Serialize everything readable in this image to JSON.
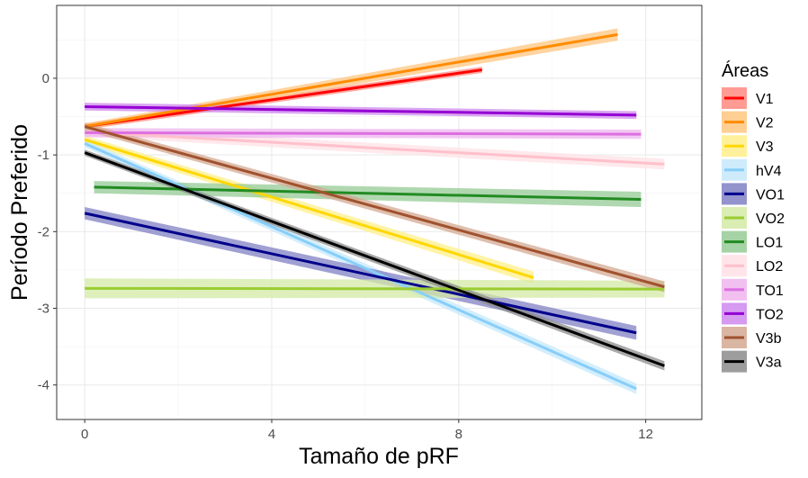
{
  "chart_data": {
    "type": "line",
    "xlabel": "Tamaño de pRF",
    "ylabel": "Período Preferido",
    "xlim": [
      -0.6,
      13.2
    ],
    "ylim": [
      -4.45,
      0.95
    ],
    "xticks": [
      0,
      4,
      8,
      12
    ],
    "yticks": [
      0,
      -1,
      -2,
      -3,
      -4
    ],
    "x_tick_labels": [
      "0",
      "4",
      "8",
      "12"
    ],
    "y_tick_labels": [
      "0",
      "-1",
      "-2",
      "-3",
      "-4"
    ],
    "grid": true,
    "legend": {
      "title": "Áreas",
      "position": "right"
    },
    "series": [
      {
        "name": "V1",
        "color": "#ff0000",
        "band": "#ff8a80",
        "x": [
          0,
          8.5
        ],
        "y": [
          -0.63,
          0.11
        ],
        "se": [
          0.04,
          0.04
        ]
      },
      {
        "name": "V2",
        "color": "#ff8c00",
        "band": "#ffc680",
        "x": [
          0,
          11.4
        ],
        "y": [
          -0.63,
          0.57
        ],
        "se": [
          0.04,
          0.08
        ]
      },
      {
        "name": "V3",
        "color": "#ffd700",
        "band": "#ffef8a",
        "x": [
          0,
          9.6
        ],
        "y": [
          -0.8,
          -2.6
        ],
        "se": [
          0.05,
          0.08
        ]
      },
      {
        "name": "hV4",
        "color": "#87cefa",
        "band": "#c6e8fb",
        "x": [
          0,
          11.8
        ],
        "y": [
          -0.85,
          -4.05
        ],
        "se": [
          0.05,
          0.07
        ]
      },
      {
        "name": "VO1",
        "color": "#00008b",
        "band": "#8080c4",
        "x": [
          0,
          11.8
        ],
        "y": [
          -1.76,
          -3.32
        ],
        "se": [
          0.08,
          0.09
        ]
      },
      {
        "name": "VO2",
        "color": "#9acd32",
        "band": "#d4eaa6",
        "x": [
          0,
          12.4
        ],
        "y": [
          -2.74,
          -2.75
        ],
        "se": [
          0.13,
          0.11
        ]
      },
      {
        "name": "LO1",
        "color": "#228b22",
        "band": "#96cb96",
        "x": [
          0.2,
          11.9
        ],
        "y": [
          -1.42,
          -1.58
        ],
        "se": [
          0.08,
          0.1
        ]
      },
      {
        "name": "LO2",
        "color": "#ffc0cb",
        "band": "#ffe1e6",
        "x": [
          0,
          12.4
        ],
        "y": [
          -0.7,
          -1.12
        ],
        "se": [
          0.06,
          0.07
        ]
      },
      {
        "name": "TO1",
        "color": "#dd6fe0",
        "band": "#eeb5ef",
        "x": [
          0,
          11.9
        ],
        "y": [
          -0.71,
          -0.73
        ],
        "se": [
          0.06,
          0.06
        ]
      },
      {
        "name": "TO2",
        "color": "#9400d3",
        "band": "#cf88ee",
        "x": [
          0,
          11.8
        ],
        "y": [
          -0.37,
          -0.48
        ],
        "se": [
          0.05,
          0.05
        ]
      },
      {
        "name": "V3b",
        "color": "#a0522d",
        "band": "#d4a892",
        "x": [
          0,
          12.4
        ],
        "y": [
          -0.63,
          -2.72
        ],
        "se": [
          0.05,
          0.07
        ]
      },
      {
        "name": "V3a",
        "color": "#000000",
        "band": "#8c8c8c",
        "x": [
          0,
          12.4
        ],
        "y": [
          -0.97,
          -3.75
        ],
        "se": [
          0.04,
          0.06
        ]
      }
    ]
  }
}
